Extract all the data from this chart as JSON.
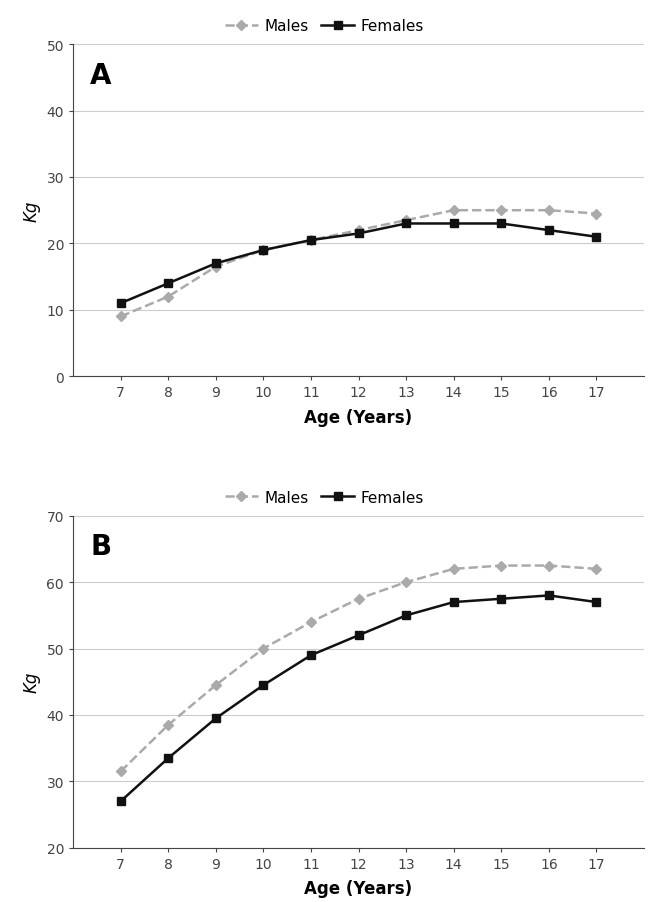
{
  "ages": [
    7,
    8,
    9,
    10,
    11,
    12,
    13,
    14,
    15,
    16,
    17
  ],
  "panel_A": {
    "label": "A",
    "males_y": [
      9,
      12,
      16.5,
      19,
      20.5,
      22,
      23.5,
      25,
      25,
      25,
      24.5
    ],
    "females_y": [
      11,
      14,
      17,
      19,
      20.5,
      21.5,
      23,
      23,
      23,
      22,
      21
    ],
    "ylabel": "Kg",
    "xlabel": "Age (Years)",
    "ylim": [
      0,
      50
    ],
    "yticks": [
      0,
      10,
      20,
      30,
      40,
      50
    ],
    "xlim": [
      6,
      18
    ],
    "xticks": [
      7,
      8,
      9,
      10,
      11,
      12,
      13,
      14,
      15,
      16,
      17
    ]
  },
  "panel_B": {
    "label": "B",
    "males_y": [
      31.5,
      38.5,
      44.5,
      50,
      54,
      57.5,
      60,
      62,
      62.5,
      62.5,
      62
    ],
    "females_y": [
      27,
      33.5,
      39.5,
      44.5,
      49,
      52,
      55,
      57,
      57.5,
      58,
      57
    ],
    "ylabel": "Kg",
    "xlabel": "Age (Years)",
    "ylim": [
      20,
      70
    ],
    "yticks": [
      20,
      30,
      40,
      50,
      60,
      70
    ],
    "xlim": [
      6,
      18
    ],
    "xticks": [
      7,
      8,
      9,
      10,
      11,
      12,
      13,
      14,
      15,
      16,
      17
    ]
  },
  "males_color": "#aaaaaa",
  "females_color": "#111111",
  "males_linestyle": "dashed",
  "females_linestyle": "solid",
  "males_marker": "D",
  "females_marker": "s",
  "linewidth": 1.8,
  "markersize": 5.5,
  "grid_color": "#cccccc",
  "background_color": "#ffffff",
  "panel_label_fontsize": 20,
  "axis_label_fontsize": 12,
  "tick_fontsize": 10,
  "legend_fontsize": 11
}
